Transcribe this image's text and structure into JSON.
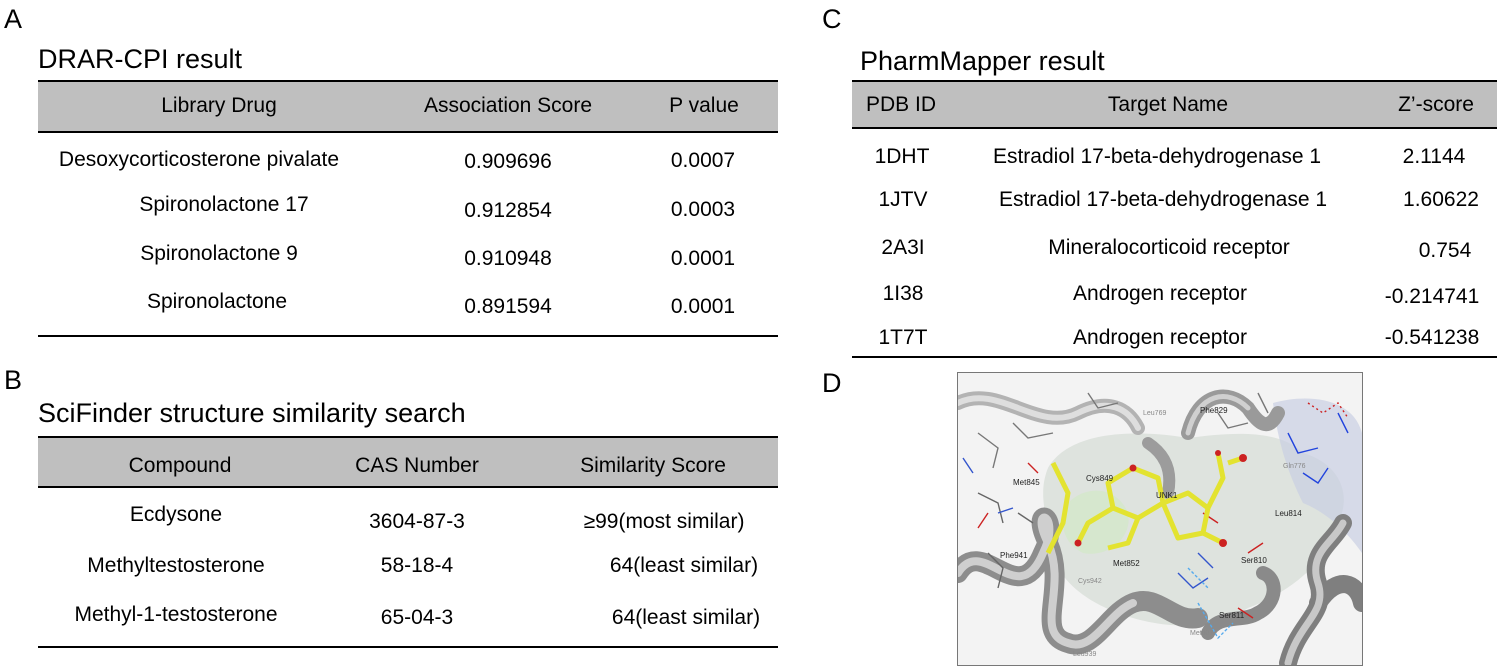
{
  "panel_a": {
    "letter": "A",
    "title": "DRAR-CPI result",
    "columns": [
      "Library Drug",
      "Association Score",
      "P value"
    ],
    "rows": [
      [
        "Desoxycorticosterone pivalate",
        "0.909696",
        "0.0007"
      ],
      [
        "Spironolactone 17",
        "0.912854",
        "0.0003"
      ],
      [
        "Spironolactone 9",
        "0.910948",
        "0.0001"
      ],
      [
        "Spironolactone",
        "0.891594",
        "0.0001"
      ]
    ]
  },
  "panel_b": {
    "letter": "B",
    "title": "SciFinder structure similarity search",
    "columns": [
      "Compound",
      "CAS Number",
      "Similarity Score"
    ],
    "rows": [
      [
        "Ecdysone",
        "3604-87-3",
        "≥99(most similar)"
      ],
      [
        "Methyltestosterone",
        "58-18-4",
        "64(least similar)"
      ],
      [
        "Methyl-1-testosterone",
        "65-04-3",
        "64(least similar)"
      ]
    ]
  },
  "panel_c": {
    "letter": "C",
    "title": "PharmMapper result",
    "columns": [
      "PDB ID",
      "Target Name",
      "Z’-score"
    ],
    "rows": [
      [
        "1DHT",
        "Estradiol 17-beta-dehydrogenase 1",
        "2.1144"
      ],
      [
        "1JTV",
        "Estradiol 17-beta-dehydrogenase 1",
        "1.60622"
      ],
      [
        "2A3I",
        "Mineralocorticoid receptor",
        "0.754"
      ],
      [
        "1I38",
        "Androgen receptor",
        "-0.214741"
      ],
      [
        "1T7T",
        "Androgen receptor",
        "-0.541238"
      ]
    ]
  },
  "panel_d": {
    "letter": "D",
    "residue_labels": {
      "cys849": "Cys849",
      "met845": "Met845",
      "unk1": "UNK1",
      "phe829": "Phe829",
      "leu769": "Leu769",
      "leu814": "Leu814",
      "ser810": "Ser810",
      "ser811": "Ser811",
      "met852": "Met852",
      "phe941": "Phe941",
      "cys942": "Cys942",
      "met807": "Met807",
      "leu939": "Leu939",
      "gln776": "Gln776"
    },
    "colors": {
      "ligand": "#e3e330",
      "ribbon": "#9a9a9a",
      "surface": "#cfd8cf"
    }
  }
}
